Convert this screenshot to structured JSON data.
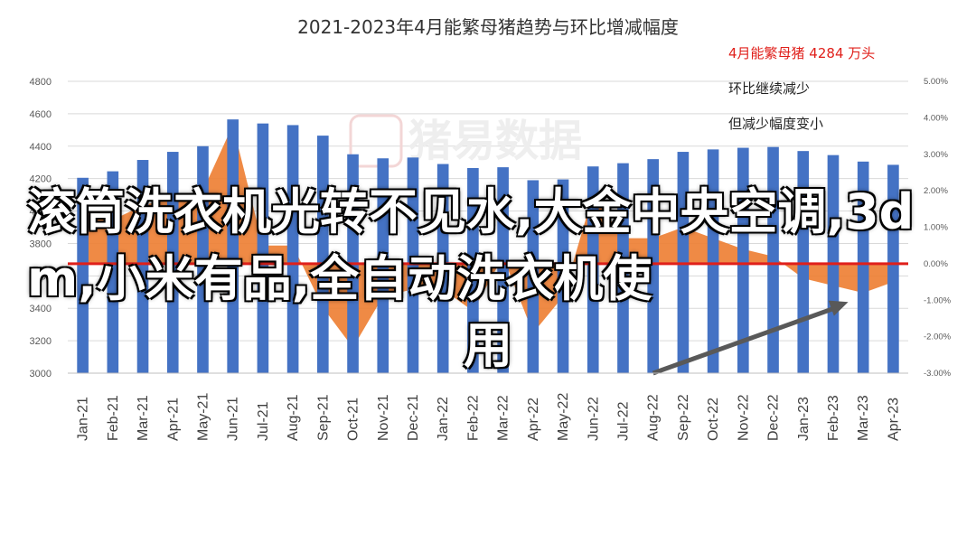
{
  "overlay": {
    "line1": "滚筒洗衣机光转不见水,大金中央空调",
    "line2": ",3dm,小米有品,全自动洗衣机使",
    "line3": "用"
  },
  "watermark": "猪易数据",
  "chart_data": {
    "type": "bar",
    "title": "2021-2023年4月能繁母猪趋势与环比增减幅度",
    "categories": [
      "Jan-21",
      "Feb-21",
      "Mar-21",
      "Apr-21",
      "May-21",
      "Jun-21",
      "Jul-21",
      "Aug-21",
      "Sep-21",
      "Oct-21",
      "Nov-21",
      "Dec-21",
      "Jan-22",
      "Feb-22",
      "Mar-22",
      "Apr-22",
      "May-22",
      "Jun-22",
      "Jul-22",
      "Aug-22",
      "Sep-22",
      "Oct-22",
      "Nov-22",
      "Dec-22",
      "Jan-23",
      "Feb-23",
      "Mar-23",
      "Apr-23"
    ],
    "series": [
      {
        "kind": "bar",
        "color": "#4472c4",
        "values": [
          4205,
          4245,
          4315,
          4365,
          4400,
          4565,
          4540,
          4530,
          4465,
          4350,
          4325,
          4330,
          4290,
          4265,
          4270,
          4190,
          4195,
          4275,
          4295,
          4320,
          4365,
          4380,
          4390,
          4395,
          4370,
          4345,
          4305,
          4285
        ]
      },
      {
        "kind": "area",
        "color": "#ed7d31",
        "values": [
          1.8,
          1.2,
          1.6,
          1.8,
          2.0,
          3.8,
          0.5,
          0.5,
          -1.2,
          -2.3,
          -0.9,
          -0.7,
          -0.7,
          -1.3,
          0.2,
          -1.9,
          -0.9,
          1.9,
          0.7,
          0.7,
          1.0,
          0.7,
          0.4,
          0.2,
          -0.4,
          -0.6,
          -0.8,
          -0.5
        ]
      }
    ],
    "y_left": {
      "min": 3000,
      "max": 4800,
      "ticks": [
        3000,
        3200,
        3400,
        3600,
        3800,
        4000,
        4200,
        4400,
        4600,
        4800
      ]
    },
    "y_right": {
      "min": -3,
      "max": 5,
      "ticks": [
        "-3.00%",
        "-2.00%",
        "-1.00%",
        "0.00%",
        "1.00%",
        "2.00%",
        "3.00%",
        "4.00%",
        "5.00%"
      ]
    },
    "zero_line_color": "#e0201b",
    "arrow": {
      "from_index": 19,
      "from_value": -3.0,
      "to_index": 25.5,
      "to_value": -1.05,
      "color": "#595959"
    },
    "annotations": [
      {
        "text": "4月能繁母猪 4284 万头",
        "color": "#e0201b"
      },
      {
        "text": "环比继续减少",
        "color": "#222222"
      },
      {
        "text": "但减少幅度变小",
        "color": "#222222"
      }
    ]
  }
}
